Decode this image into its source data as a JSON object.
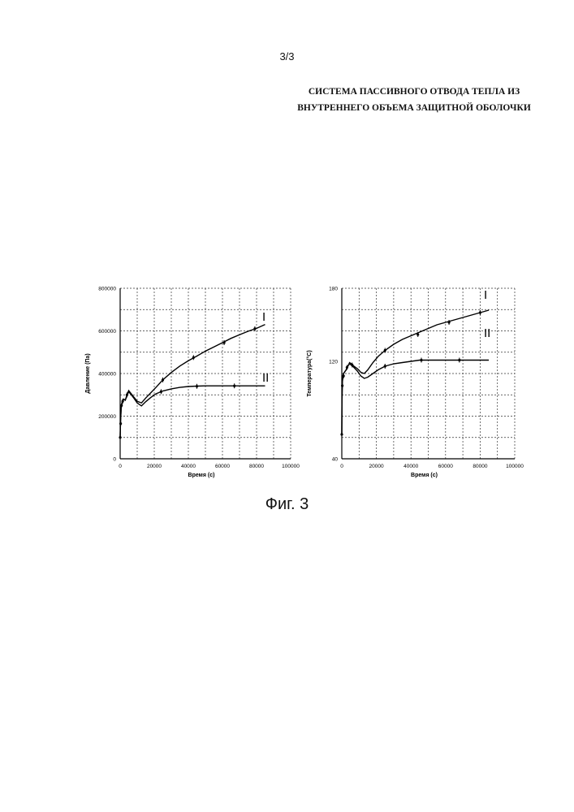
{
  "page_number": "3/3",
  "title_line1": "СИСТЕМА ПАССИВНОГО ОТВОДА ТЕПЛА ИЗ",
  "title_line2": "ВНУТРЕННЕГО ОБЪЕМА ЗАЩИТНОЙ ОБОЛОЧКИ",
  "figure_caption": "Фиг. 3",
  "chart_data": [
    {
      "type": "line",
      "xlabel": "Время (с)",
      "ylabel": "Давление (Па)",
      "xlim": [
        0,
        100000
      ],
      "ylim": [
        0,
        800000
      ],
      "xticks": [
        "0",
        "20000",
        "40000",
        "60000",
        "80000",
        "100000"
      ],
      "yticks": [
        "0",
        "200000",
        "400000",
        "600000",
        "800000"
      ],
      "grid": true,
      "series": [
        {
          "name": "I",
          "x": [
            0,
            200,
            600,
            1200,
            2000,
            3000,
            4000,
            5000,
            6500,
            8000,
            10000,
            12500,
            15000,
            18000,
            21000,
            25000,
            30000,
            35000,
            40000,
            45000,
            50000,
            55000,
            60000,
            65000,
            70000,
            75000,
            80000,
            85000
          ],
          "y": [
            100000,
            170000,
            240000,
            265000,
            280000,
            275000,
            300000,
            320000,
            305000,
            290000,
            270000,
            262000,
            285000,
            310000,
            335000,
            370000,
            405000,
            435000,
            460000,
            482000,
            505000,
            525000,
            545000,
            565000,
            582000,
            598000,
            612000,
            630000
          ]
        },
        {
          "name": "II",
          "x": [
            0,
            200,
            600,
            1200,
            2000,
            3000,
            4000,
            5000,
            6500,
            8000,
            10000,
            12500,
            15000,
            18000,
            21000,
            25000,
            30000,
            35000,
            40000,
            45000,
            50000,
            55000,
            60000,
            65000,
            70000,
            75000,
            80000,
            85000
          ],
          "y": [
            100000,
            170000,
            240000,
            265000,
            280000,
            275000,
            295000,
            315000,
            300000,
            285000,
            262000,
            248000,
            268000,
            288000,
            305000,
            318000,
            328000,
            335000,
            339000,
            341000,
            342000,
            342000,
            342000,
            342000,
            342000,
            342000,
            342000,
            342000
          ]
        }
      ],
      "markers": [
        {
          "series": "I",
          "x": 25000,
          "y": 370000
        },
        {
          "series": "I",
          "x": 43000,
          "y": 475000
        },
        {
          "series": "I",
          "x": 61000,
          "y": 545000
        },
        {
          "series": "I",
          "x": 79000,
          "y": 610000
        },
        {
          "series": "II",
          "x": 24000,
          "y": 315000
        },
        {
          "series": "II",
          "x": 45000,
          "y": 340000
        },
        {
          "series": "II",
          "x": 67000,
          "y": 342000
        },
        {
          "series": "both",
          "x": 0,
          "y": 100000
        },
        {
          "series": "both",
          "x": 300,
          "y": 165000
        },
        {
          "series": "both",
          "x": 800,
          "y": 250000
        },
        {
          "series": "both",
          "x": 1500,
          "y": 270000
        },
        {
          "series": "both",
          "x": 4000,
          "y": 300000
        }
      ],
      "annotations": [
        "I",
        "II"
      ]
    },
    {
      "type": "line",
      "xlabel": "Время (с)",
      "ylabel": "Температура(°C)",
      "xlim": [
        0,
        100000
      ],
      "ylim": [
        40,
        180
      ],
      "xticks": [
        "0",
        "20000",
        "40000",
        "60000",
        "80000",
        "100000"
      ],
      "yticks": [
        "40",
        "120",
        "180"
      ],
      "grid": true,
      "series": [
        {
          "name": "I",
          "x": [
            0,
            100,
            300,
            600,
            1000,
            1500,
            2500,
            3500,
            4500,
            5500,
            7000,
            9000,
            11000,
            13000,
            15000,
            18000,
            21000,
            25000,
            30000,
            35000,
            40000,
            45000,
            50000,
            55000,
            60000,
            65000,
            70000,
            75000,
            80000,
            85000
          ],
          "y": [
            60,
            85,
            102,
            108,
            110,
            111,
            113,
            116,
            119,
            118,
            116,
            114,
            111,
            110,
            113,
            119,
            124,
            129,
            134,
            138,
            141,
            144,
            147,
            150,
            152,
            154,
            156,
            158,
            160,
            162
          ]
        },
        {
          "name": "II",
          "x": [
            0,
            100,
            300,
            600,
            1000,
            1500,
            2500,
            3500,
            4500,
            5500,
            7000,
            9000,
            11000,
            13000,
            15000,
            18000,
            21000,
            25000,
            30000,
            35000,
            40000,
            45000,
            50000,
            55000,
            60000,
            65000,
            70000,
            75000,
            80000,
            85000
          ],
          "y": [
            60,
            85,
            102,
            108,
            110,
            111,
            113,
            116,
            118,
            117,
            115,
            112,
            108,
            106,
            107,
            110,
            113,
            116,
            118,
            119,
            120,
            121,
            121,
            121,
            121,
            121,
            121,
            121,
            121,
            121
          ]
        }
      ],
      "markers": [
        {
          "series": "I",
          "x": 25000,
          "y": 129
        },
        {
          "series": "I",
          "x": 44000,
          "y": 142
        },
        {
          "series": "I",
          "x": 62000,
          "y": 152
        },
        {
          "series": "I",
          "x": 80000,
          "y": 160
        },
        {
          "series": "II",
          "x": 25000,
          "y": 116
        },
        {
          "series": "II",
          "x": 46000,
          "y": 121
        },
        {
          "series": "II",
          "x": 68000,
          "y": 121
        },
        {
          "series": "both",
          "x": 0,
          "y": 60
        },
        {
          "series": "both",
          "x": 300,
          "y": 100
        },
        {
          "series": "both",
          "x": 1000,
          "y": 108
        },
        {
          "series": "both",
          "x": 3000,
          "y": 115
        },
        {
          "series": "both",
          "x": 6000,
          "y": 117
        }
      ],
      "annotations": [
        "I",
        "II"
      ]
    }
  ]
}
